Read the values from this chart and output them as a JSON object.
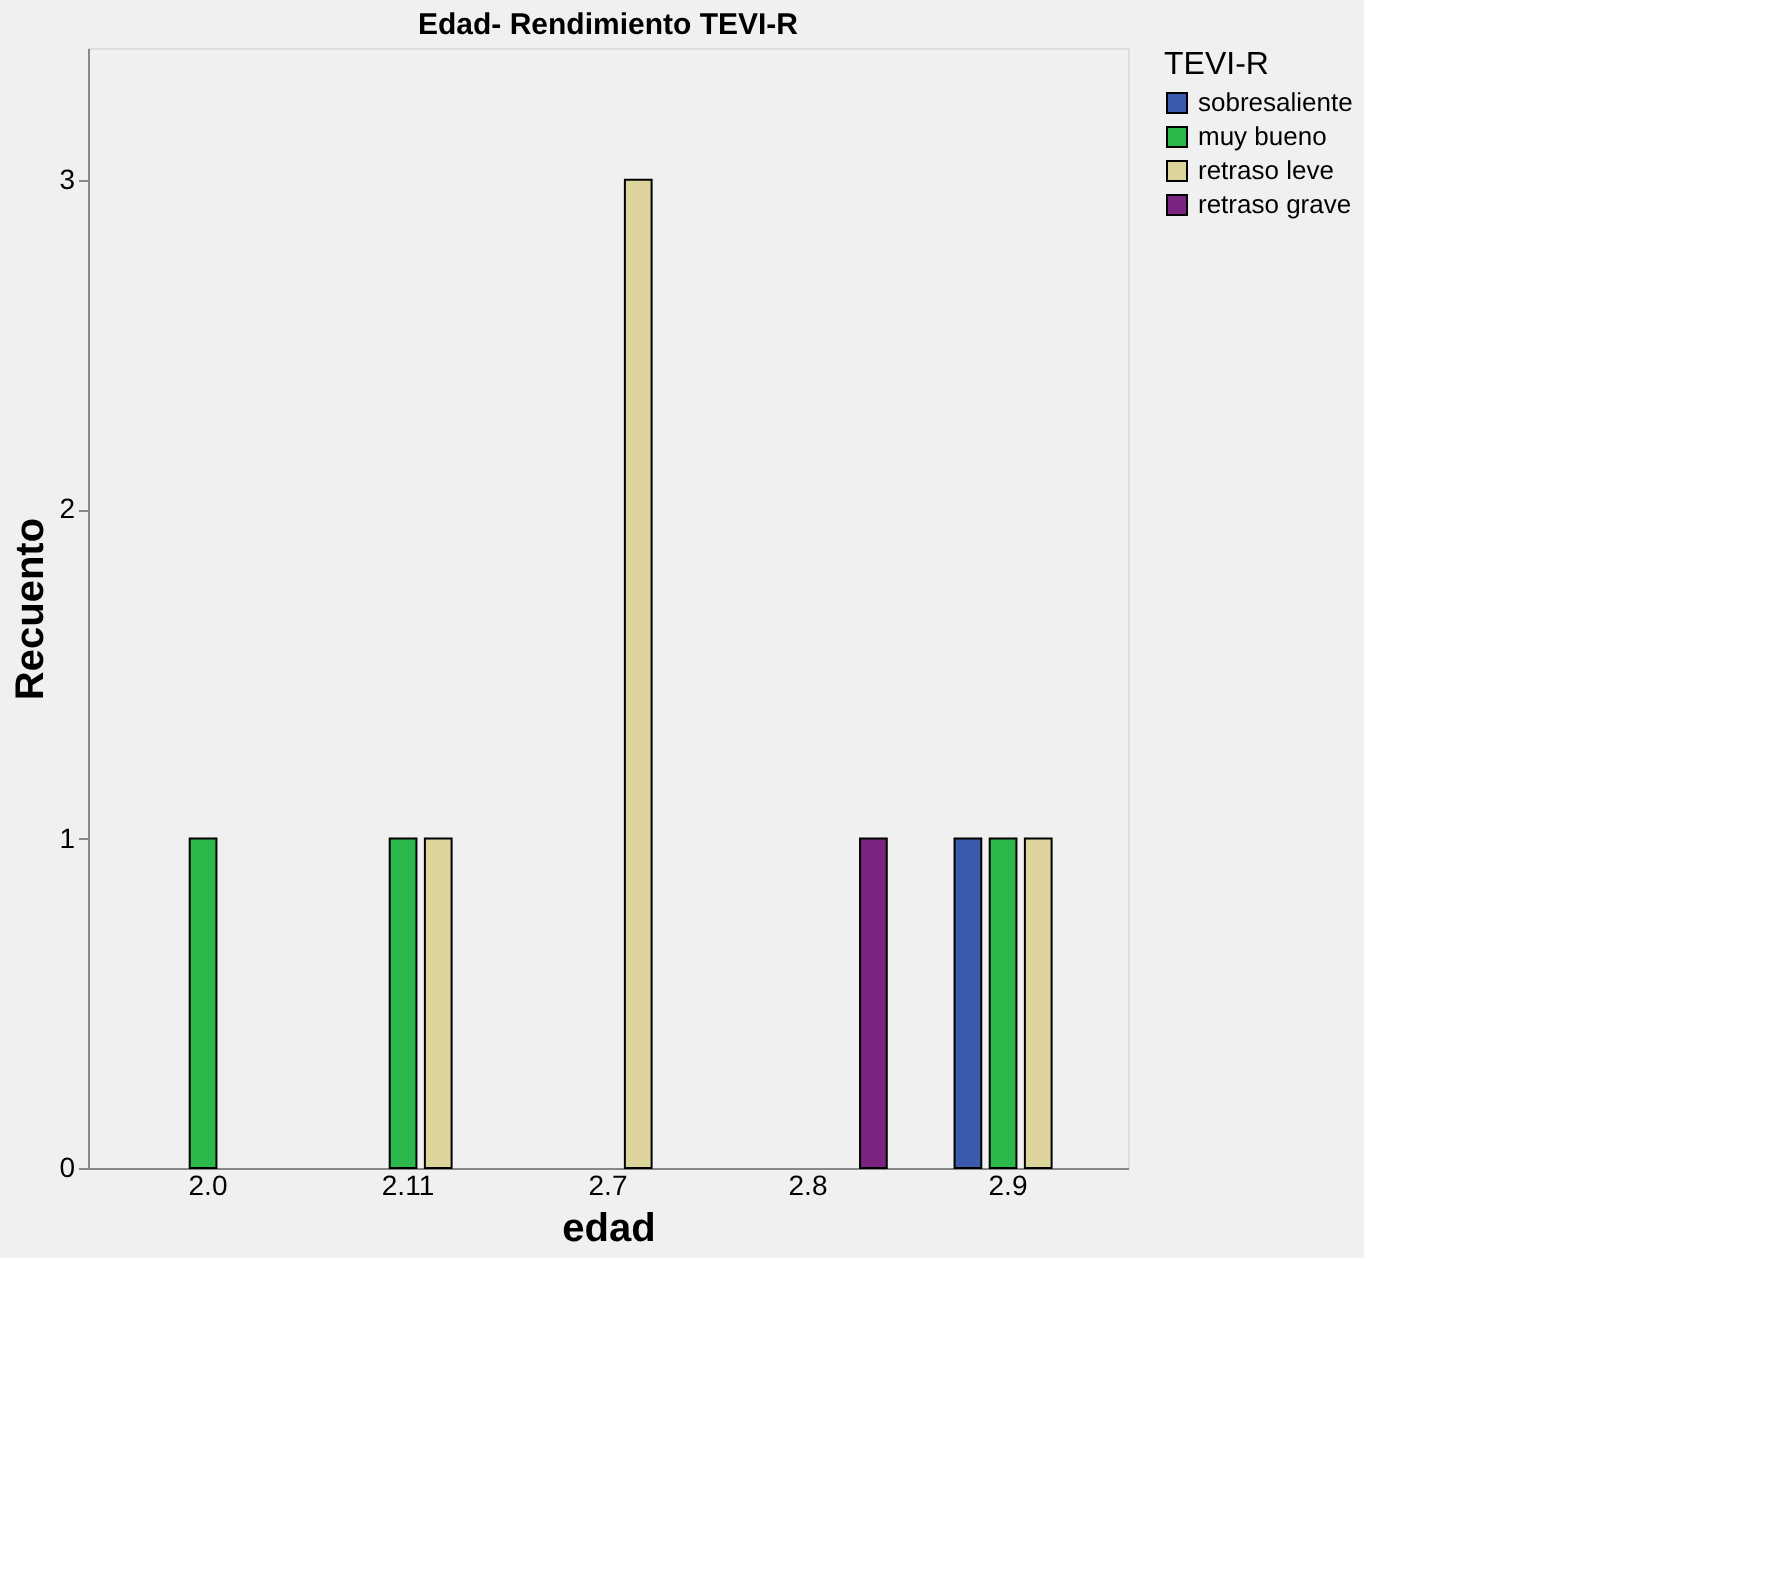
{
  "chart_data": {
    "type": "bar",
    "title": "Edad- Rendimiento TEVI-R",
    "xlabel": "edad",
    "ylabel": "Recuento",
    "legend_title": "TEVI-R",
    "categories": [
      "2.0",
      "2.11",
      "2.7",
      "2.8",
      "2.9"
    ],
    "series": [
      {
        "name": "sobresaliente",
        "color": "#3a5bab",
        "values": [
          null,
          null,
          null,
          null,
          1
        ]
      },
      {
        "name": "muy bueno",
        "color": "#2db84b",
        "values": [
          1,
          1,
          null,
          null,
          1
        ]
      },
      {
        "name": "retraso leve",
        "color": "#dcd49a",
        "values": [
          null,
          1,
          3,
          null,
          1
        ]
      },
      {
        "name": "retraso grave",
        "color": "#7b2380",
        "values": [
          null,
          null,
          null,
          1,
          null
        ]
      }
    ],
    "ylim": [
      0,
      3.4
    ],
    "yticks": [
      0,
      1,
      2,
      3
    ],
    "grid": false,
    "legend": "top right"
  }
}
